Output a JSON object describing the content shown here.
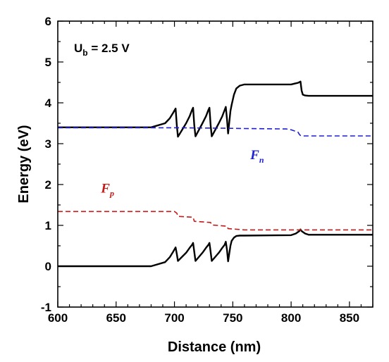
{
  "chart_data": {
    "type": "line",
    "xlabel": "Distance (nm)",
    "ylabel": "Energy (eV)",
    "xlim": [
      600,
      870
    ],
    "ylim": [
      -1,
      6
    ],
    "xticks": [
      600,
      650,
      700,
      750,
      800,
      850
    ],
    "yticks": [
      -1,
      0,
      1,
      2,
      3,
      4,
      5,
      6
    ],
    "grid": false,
    "annotation": {
      "main": "U",
      "sub": "b",
      "rest": " = 2.5 V"
    },
    "series": [
      {
        "key": "ec",
        "color": "#000000",
        "dash": "solid",
        "x": [
          600,
          680,
          692,
          696,
          699,
          701,
          702,
          703,
          710,
          713,
          715,
          716,
          717,
          718,
          724,
          727,
          729,
          730,
          731,
          732,
          738,
          741,
          743,
          744,
          745,
          746,
          748,
          749,
          751,
          753,
          756,
          760,
          800,
          803,
          806,
          808,
          809,
          810,
          812,
          815,
          870
        ],
        "y": [
          3.4,
          3.4,
          3.5,
          3.62,
          3.76,
          3.86,
          3.45,
          3.17,
          3.5,
          3.67,
          3.82,
          3.88,
          3.45,
          3.18,
          3.5,
          3.67,
          3.82,
          3.88,
          3.45,
          3.18,
          3.5,
          3.67,
          3.82,
          3.9,
          3.6,
          3.25,
          3.8,
          3.95,
          4.2,
          4.35,
          4.42,
          4.45,
          4.45,
          4.47,
          4.49,
          4.52,
          4.3,
          4.2,
          4.18,
          4.17,
          4.17
        ]
      },
      {
        "key": "ev",
        "color": "#000000",
        "dash": "solid",
        "x": [
          600,
          680,
          692,
          696,
          699,
          701,
          702,
          703,
          710,
          713,
          715,
          716,
          717,
          718,
          724,
          727,
          729,
          730,
          731,
          732,
          738,
          741,
          743,
          744,
          745,
          746,
          748,
          749,
          751,
          753,
          756,
          760,
          800,
          804,
          807,
          808,
          809,
          812,
          815,
          870
        ],
        "y": [
          0.0,
          0.0,
          0.1,
          0.22,
          0.36,
          0.46,
          0.3,
          0.13,
          0.33,
          0.45,
          0.52,
          0.57,
          0.35,
          0.13,
          0.33,
          0.45,
          0.52,
          0.57,
          0.35,
          0.13,
          0.33,
          0.45,
          0.52,
          0.6,
          0.4,
          0.12,
          0.5,
          0.62,
          0.7,
          0.74,
          0.75,
          0.75,
          0.76,
          0.8,
          0.86,
          0.9,
          0.86,
          0.8,
          0.77,
          0.77
        ]
      },
      {
        "name": "F",
        "sub": "n",
        "color": "#1f1fd6",
        "dash": "dashed",
        "label_at": [
          765,
          2.62
        ],
        "x": [
          600,
          700,
          740,
          760,
          796,
          800,
          803,
          806,
          807,
          808,
          810,
          870
        ],
        "y": [
          3.39,
          3.39,
          3.38,
          3.37,
          3.36,
          3.34,
          3.31,
          3.28,
          3.23,
          3.2,
          3.19,
          3.19
        ]
      },
      {
        "name": "F",
        "sub": "p",
        "color": "#c41a1a",
        "dash": "dashed",
        "label_at": [
          637,
          1.8
        ],
        "x": [
          600,
          700,
          702,
          703,
          716,
          717,
          731,
          732,
          745,
          746,
          760,
          870
        ],
        "y": [
          1.34,
          1.34,
          1.3,
          1.22,
          1.2,
          1.1,
          1.07,
          1.01,
          0.98,
          0.92,
          0.89,
          0.89
        ]
      }
    ]
  }
}
